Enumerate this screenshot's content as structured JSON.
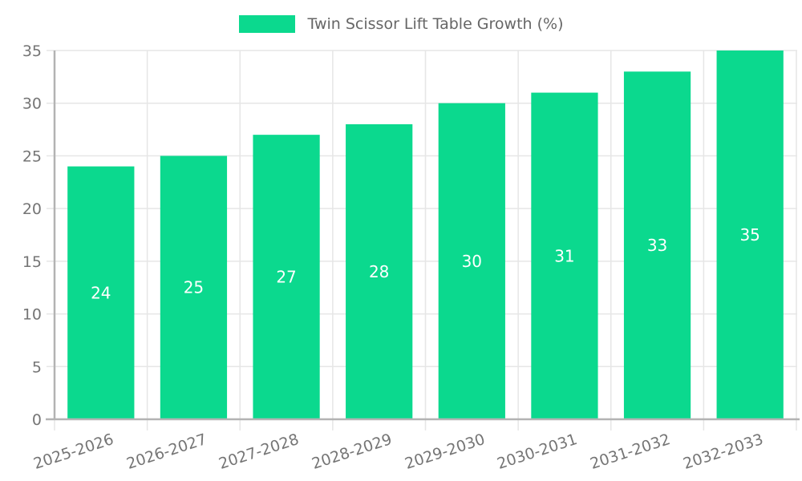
{
  "chart_data": {
    "type": "bar",
    "legend": "Twin Scissor Lift Table Growth (%)",
    "legend_position": "top-center",
    "categories": [
      "2025-2026",
      "2026-2027",
      "2027-2028",
      "2028-2029",
      "2029-2030",
      "2030-2031",
      "2031-2032",
      "2032-2033"
    ],
    "values": [
      24,
      25,
      27,
      28,
      30,
      31,
      33,
      35
    ],
    "value_labels": [
      "24",
      "25",
      "27",
      "28",
      "30",
      "31",
      "33",
      "35"
    ],
    "value_label_position": "center-of-bar",
    "yticks": [
      0,
      5,
      10,
      15,
      20,
      25,
      30,
      35
    ],
    "ylim": [
      0,
      35
    ],
    "xlabel": "",
    "ylabel": "",
    "grid": true,
    "x_tick_rotation_deg": -18,
    "colors": {
      "bar": "#0bd98e",
      "grid": "#e6e6e6",
      "axis": "#b3b3b3",
      "tick_text": "#757575",
      "legend_text": "#666666",
      "value_text": "#ffffff",
      "background": "#ffffff"
    }
  }
}
